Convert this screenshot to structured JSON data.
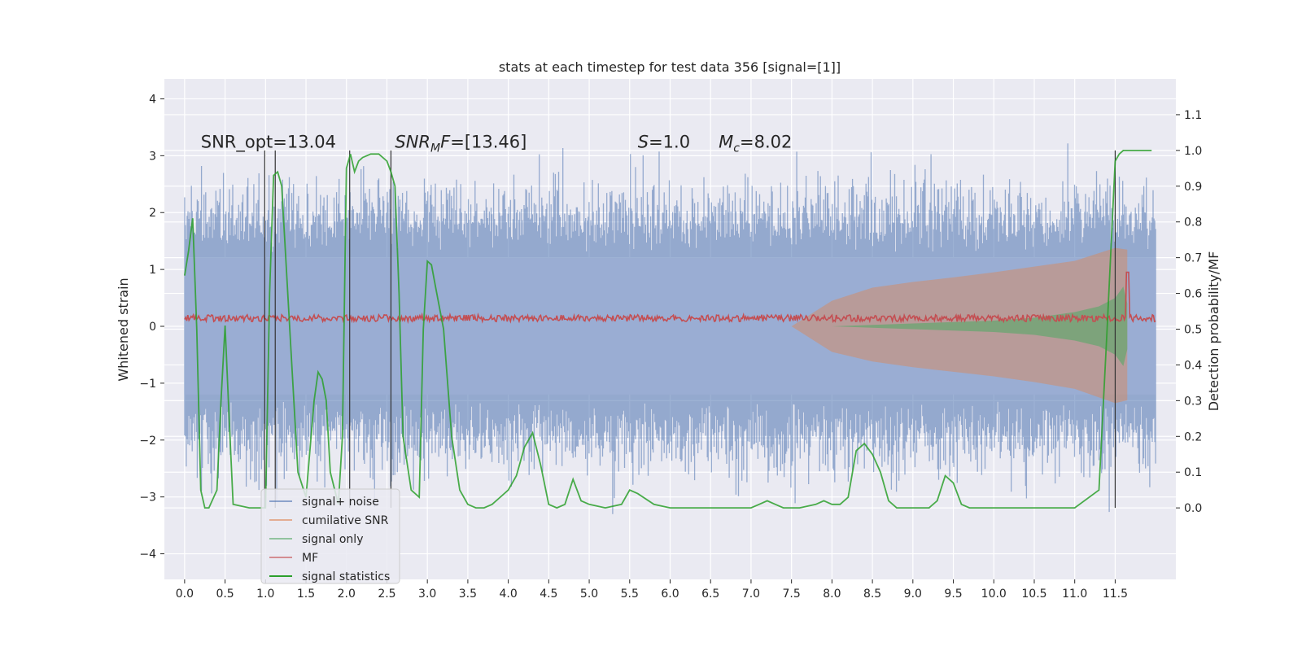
{
  "chart_data": {
    "type": "line",
    "title": "stats at each timestep for test data 356 [signal=[1]]",
    "ylabel": "Whitened strain",
    "y2label": "Detection probability/MF",
    "xlim": [
      -0.25,
      12.25
    ],
    "ylim": [
      -4.45,
      4.35
    ],
    "y2lim": [
      -0.2,
      1.2
    ],
    "x_ticks": [
      "0.0",
      "0.5",
      "1.0",
      "1.5",
      "2.0",
      "2.5",
      "3.0",
      "3.5",
      "4.0",
      "4.5",
      "5.0",
      "5.5",
      "6.0",
      "6.5",
      "7.0",
      "7.5",
      "8.0",
      "8.5",
      "9.0",
      "9.5",
      "10.0",
      "10.5",
      "11.0",
      "11.5"
    ],
    "y_ticks": [
      "4",
      "3",
      "2",
      "1",
      "0",
      "−1",
      "−2",
      "−3",
      "−4"
    ],
    "y2_ticks": [
      "1.1",
      "1.0",
      "0.9",
      "0.8",
      "0.7",
      "0.6",
      "0.5",
      "0.4",
      "0.3",
      "0.2",
      "0.1",
      "0.0"
    ],
    "grid": true,
    "legend_position": "lower-left",
    "legend": [
      {
        "label": "signal+ noise",
        "color": "#4c72b0"
      },
      {
        "label": "cumilative SNR",
        "color": "#dd8452"
      },
      {
        "label": "signal only",
        "color": "#55a868"
      },
      {
        "label": "MF",
        "color": "#c44e52"
      },
      {
        "label": "signal statistics",
        "color": "#2ca02c"
      }
    ],
    "annotations": [
      {
        "text": "SNR_opt=13.04",
        "x": 0.2
      },
      {
        "text": "SNRMF=[13.46]",
        "x": 2.6
      },
      {
        "text": "S=1.0",
        "x": 5.6
      },
      {
        "text": "Mc=8.02",
        "x": 6.6
      }
    ],
    "noise_envelope": {
      "series": "signal+ noise",
      "x_range": [
        0.0,
        12.0
      ],
      "typical_peak": 2.5,
      "max_peak": 3.9,
      "min_trough": -4.1
    },
    "cumulative_snr_envelope": {
      "x": [
        7.5,
        8.0,
        8.5,
        9.0,
        9.5,
        10.0,
        10.5,
        11.0,
        11.5,
        11.65
      ],
      "upper": [
        0.0,
        0.45,
        0.68,
        0.78,
        0.86,
        0.95,
        1.05,
        1.15,
        1.38,
        1.35
      ],
      "lower": [
        0.0,
        -0.45,
        -0.62,
        -0.72,
        -0.8,
        -0.88,
        -0.98,
        -1.1,
        -1.35,
        -1.3
      ]
    },
    "signal_only_envelope": {
      "x": [
        8.0,
        9.0,
        10.0,
        10.5,
        11.0,
        11.3,
        11.5,
        11.6,
        11.65
      ],
      "upper": [
        0.0,
        0.05,
        0.1,
        0.15,
        0.25,
        0.35,
        0.5,
        0.7,
        0.4
      ],
      "lower": [
        0.0,
        -0.05,
        -0.1,
        -0.15,
        -0.25,
        -0.35,
        -0.5,
        -0.7,
        -0.4
      ]
    },
    "mf_level": {
      "mean": 0.12,
      "spread": 0.12,
      "peak_x": 11.65,
      "peak_y": 0.95
    },
    "signal_statistics": {
      "x": [
        0.0,
        0.05,
        0.1,
        0.15,
        0.2,
        0.25,
        0.3,
        0.4,
        0.45,
        0.5,
        0.55,
        0.6,
        0.8,
        1.0,
        1.05,
        1.1,
        1.15,
        1.2,
        1.3,
        1.4,
        1.5,
        1.6,
        1.65,
        1.7,
        1.75,
        1.8,
        1.9,
        1.95,
        2.0,
        2.05,
        2.1,
        2.15,
        2.2,
        2.3,
        2.4,
        2.5,
        2.55,
        2.6,
        2.65,
        2.7,
        2.8,
        2.9,
        2.95,
        3.0,
        3.05,
        3.1,
        3.2,
        3.3,
        3.4,
        3.5,
        3.6,
        3.7,
        3.8,
        3.9,
        4.0,
        4.1,
        4.2,
        4.3,
        4.4,
        4.5,
        4.6,
        4.7,
        4.8,
        4.9,
        5.0,
        5.2,
        5.4,
        5.5,
        5.6,
        5.8,
        6.0,
        6.5,
        7.0,
        7.1,
        7.2,
        7.3,
        7.4,
        7.6,
        7.8,
        7.9,
        8.0,
        8.1,
        8.2,
        8.3,
        8.4,
        8.5,
        8.6,
        8.7,
        8.8,
        8.9,
        9.0,
        9.2,
        9.3,
        9.4,
        9.5,
        9.6,
        9.7,
        9.8,
        10.0,
        10.5,
        11.0,
        11.3,
        11.4,
        11.5,
        11.55,
        11.6,
        11.65,
        11.7,
        11.8,
        11.9,
        11.95
      ],
      "y": [
        0.65,
        0.72,
        0.81,
        0.5,
        0.05,
        0.0,
        0.0,
        0.05,
        0.3,
        0.51,
        0.25,
        0.01,
        0.0,
        0.0,
        0.6,
        0.93,
        0.94,
        0.9,
        0.5,
        0.1,
        0.03,
        0.3,
        0.38,
        0.36,
        0.3,
        0.1,
        0.01,
        0.2,
        0.95,
        0.99,
        0.94,
        0.97,
        0.98,
        0.99,
        0.99,
        0.97,
        0.94,
        0.9,
        0.6,
        0.2,
        0.05,
        0.03,
        0.5,
        0.69,
        0.68,
        0.62,
        0.5,
        0.2,
        0.05,
        0.01,
        0.0,
        0.0,
        0.01,
        0.03,
        0.05,
        0.09,
        0.17,
        0.21,
        0.12,
        0.01,
        0.0,
        0.01,
        0.08,
        0.02,
        0.01,
        0.0,
        0.01,
        0.05,
        0.04,
        0.01,
        0.0,
        0.0,
        0.0,
        0.01,
        0.02,
        0.01,
        0.0,
        0.0,
        0.01,
        0.02,
        0.01,
        0.01,
        0.03,
        0.16,
        0.18,
        0.15,
        0.1,
        0.02,
        0.0,
        0.0,
        0.0,
        0.0,
        0.02,
        0.09,
        0.07,
        0.01,
        0.0,
        0.0,
        0.0,
        0.0,
        0.0,
        0.05,
        0.5,
        0.97,
        0.99,
        1.0,
        1.0,
        1.0,
        1.0,
        1.0,
        1.0
      ]
    },
    "vertical_markers": [
      0.99,
      1.12,
      2.04,
      2.55,
      11.5
    ]
  }
}
